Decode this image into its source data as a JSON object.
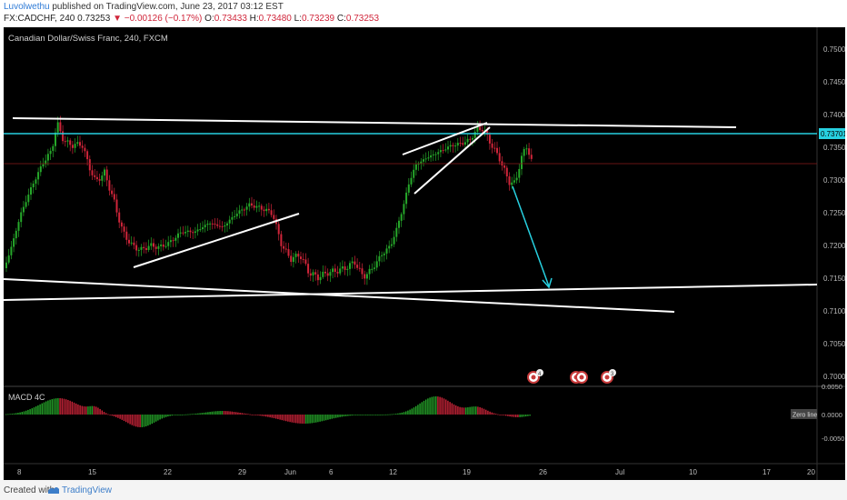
{
  "header": {
    "user": "Luvolwethu",
    "published": "published on TradingView.com, June 23, 2017 03:12 EST",
    "symbol": "FX:CADCHF, 240",
    "price": "0.73253",
    "change_arrow": "▼",
    "change": "−0.00126 (−0.17%)",
    "o_label": "O:",
    "o_value": "0.73433",
    "h_label": "H:",
    "h_value": "0.73480",
    "l_label": "L:",
    "l_value": "0.73239",
    "c_label": "C:",
    "c_value": "0.73253"
  },
  "chart": {
    "title": "Canadian Dollar/Swiss Franc, 240, FXCM",
    "price_axis": [
      "0.75000",
      "0.74500",
      "0.74000",
      "0.73500",
      "0.73000",
      "0.72500",
      "0.72000",
      "0.71500",
      "0.71000",
      "0.70500",
      "0.70000"
    ],
    "price_tag": "0.73701",
    "time_axis": [
      "8",
      "15",
      "22",
      "29",
      "Jun",
      "6",
      "12",
      "19",
      "26",
      "Jul",
      "10",
      "17",
      "20"
    ],
    "macd_label": "MACD 4C",
    "macd_axis": [
      "0.0050",
      "0.0000",
      "-0.0050"
    ],
    "zero_line_label": "Zero line",
    "event_markers": [
      "4",
      "",
      "3"
    ],
    "colors": {
      "bull": "#26a82a",
      "bear": "#d0253a",
      "cyan": "#27d0e0",
      "lines": "#ffffff"
    }
  },
  "footer": {
    "created": "Created with",
    "brand": "TradingView"
  }
}
